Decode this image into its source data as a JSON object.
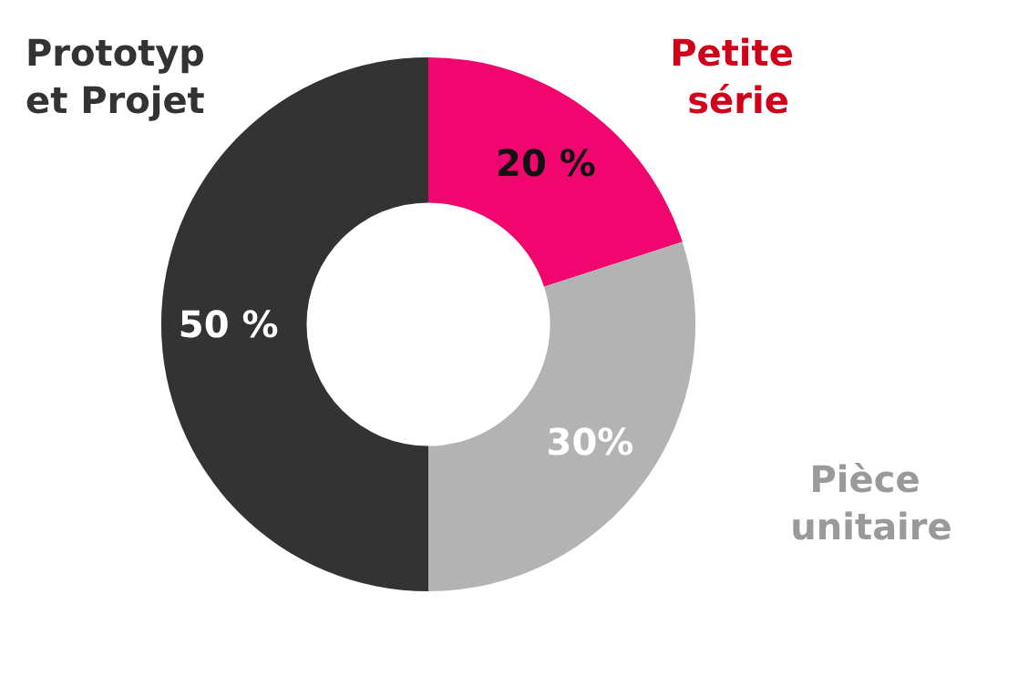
{
  "chart_data": {
    "type": "donut",
    "categories": [
      "Petite série",
      "Pièce unitaire",
      "Prototyp et Projet"
    ],
    "values": [
      20,
      30,
      50
    ],
    "colors": [
      "#f0066e",
      "#b3b3b3",
      "#333333"
    ],
    "value_labels": [
      "20 %",
      "30%",
      "50 %"
    ],
    "legend": false
  }
}
